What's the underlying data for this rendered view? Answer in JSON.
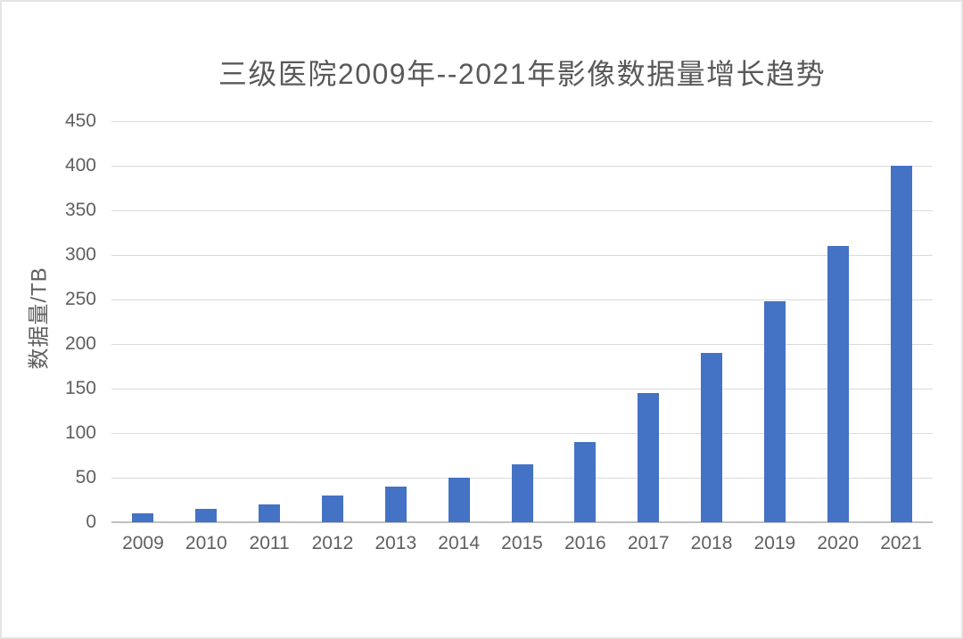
{
  "chart_data": {
    "type": "bar",
    "title": "三级医院2009年--2021年影像数据量增长趋势",
    "categories": [
      "2009",
      "2010",
      "2011",
      "2012",
      "2013",
      "2014",
      "2015",
      "2016",
      "2017",
      "2018",
      "2019",
      "2020",
      "2021"
    ],
    "values": [
      10,
      15,
      20,
      30,
      40,
      50,
      65,
      90,
      145,
      190,
      248,
      310,
      400
    ],
    "xlabel": "",
    "ylabel": "数据量/TB",
    "ylim": [
      0,
      450
    ],
    "ytick_step": 50,
    "grid": true,
    "legend_position": "none",
    "bar_color": "#4472C4",
    "text_color": "#595959",
    "gridline_color": "#DADADA",
    "axis_line_color": "#C0C0C0",
    "border_color": "#E4E4E4"
  }
}
